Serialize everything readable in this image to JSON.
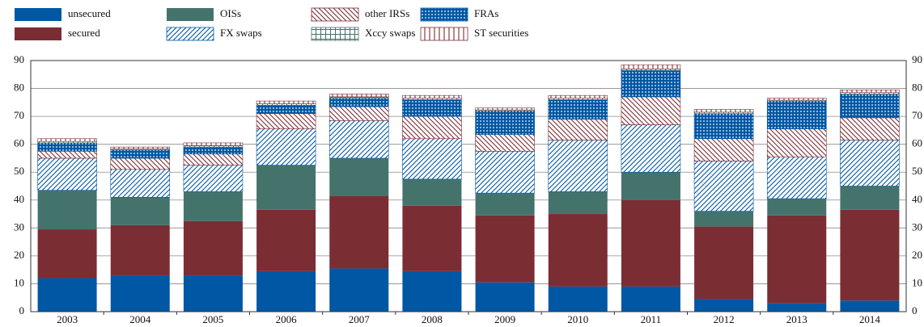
{
  "chart_data": {
    "type": "bar",
    "stacked": true,
    "categories": [
      "2003",
      "2004",
      "2005",
      "2006",
      "2007",
      "2008",
      "2009",
      "2010",
      "2011",
      "2012",
      "2013",
      "2014"
    ],
    "series": [
      {
        "name": "unsecured",
        "color": "#0057a4",
        "hatch": "solid",
        "values": [
          12,
          13,
          13,
          14.5,
          15.5,
          14.5,
          10.5,
          9,
          9,
          4.5,
          3,
          4
        ]
      },
      {
        "name": "secured",
        "color": "#7b2d34",
        "hatch": "solid",
        "values": [
          17.5,
          18,
          19.5,
          22,
          26,
          23.5,
          24,
          26,
          31,
          26,
          31.5,
          32.5
        ]
      },
      {
        "name": "OISs",
        "color": "#44736c",
        "hatch": "solid",
        "values": [
          14,
          10,
          10.5,
          16,
          13.5,
          9.5,
          8,
          8,
          10,
          5.5,
          6,
          8.5
        ]
      },
      {
        "name": "FX swaps",
        "color": "#0057a4",
        "hatch": "diagonal-up",
        "values": [
          11.5,
          10,
          9.5,
          13,
          13.5,
          14.5,
          15,
          18.5,
          17,
          18,
          15,
          16.5
        ]
      },
      {
        "name": "other IRSs",
        "color": "#7b2d34",
        "hatch": "diagonal-down",
        "values": [
          2.5,
          4,
          4,
          5.5,
          5,
          8,
          6,
          7.5,
          10,
          8,
          10,
          8
        ]
      },
      {
        "name": "FRAs",
        "color": "#0057a4",
        "hatch": "cross",
        "values": [
          3,
          3,
          2.5,
          3,
          3,
          6,
          8.5,
          7,
          9.5,
          9,
          10,
          8.5
        ]
      },
      {
        "name": "Xccy swaps",
        "color": "#44736c",
        "hatch": "grid",
        "values": [
          0.5,
          0.3,
          0.5,
          0.5,
          0.5,
          0.5,
          0.3,
          0.5,
          0.5,
          0.5,
          0.3,
          0.5
        ]
      },
      {
        "name": "ST securities",
        "color": "#7b2d34",
        "hatch": "vertical",
        "values": [
          1,
          0.7,
          1,
          1,
          1,
          1,
          0.7,
          1,
          1.5,
          1,
          0.7,
          1
        ]
      }
    ],
    "ylim": [
      0,
      90
    ],
    "yticks": [
      0,
      10,
      20,
      30,
      40,
      50,
      60,
      70,
      80,
      90
    ],
    "grid": true
  }
}
